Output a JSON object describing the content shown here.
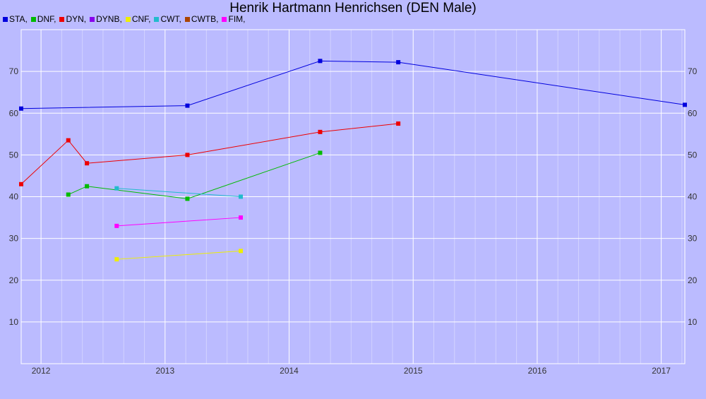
{
  "chart_data": {
    "type": "line",
    "title": "Henrik Hartmann Henrichsen (DEN Male)",
    "xlabel": "",
    "ylabel": "",
    "xlim": [
      2011.84,
      2017.19
    ],
    "ylim": [
      0,
      80
    ],
    "x_ticks": [
      "2012",
      "2013",
      "2014",
      "2015",
      "2016",
      "2017"
    ],
    "y_ticks": [
      "10",
      "20",
      "30",
      "40",
      "50",
      "60",
      "70"
    ],
    "grid": true,
    "legend_position": "top-left",
    "series": [
      {
        "name": "STA",
        "color": "#0000dd",
        "x": [
          2011.84,
          2013.18,
          2014.25,
          2014.88,
          2017.19
        ],
        "y": [
          61.1,
          61.8,
          72.5,
          72.2,
          62.0
        ]
      },
      {
        "name": "DNF",
        "color": "#00bb00",
        "x": [
          2012.22,
          2012.37,
          2013.18,
          2014.25
        ],
        "y": [
          40.5,
          42.5,
          39.5,
          50.5
        ]
      },
      {
        "name": "DYN",
        "color": "#ee0000",
        "x": [
          2011.84,
          2012.22,
          2012.37,
          2013.18,
          2014.25,
          2014.88
        ],
        "y": [
          43.0,
          53.5,
          48.0,
          50.0,
          55.5,
          57.5
        ]
      },
      {
        "name": "DYNB",
        "color": "#8800ee",
        "x": [],
        "y": []
      },
      {
        "name": "CNF",
        "color": "#eeee00",
        "x": [
          2012.61,
          2013.61
        ],
        "y": [
          25.0,
          27.0
        ]
      },
      {
        "name": "CWT",
        "color": "#22bbcc",
        "x": [
          2012.61,
          2013.61
        ],
        "y": [
          42.0,
          40.0
        ]
      },
      {
        "name": "CWTB",
        "color": "#aa4400",
        "x": [],
        "y": []
      },
      {
        "name": "FIM",
        "color": "#ff00ff",
        "x": [
          2012.61,
          2013.61
        ],
        "y": [
          33.0,
          35.0
        ]
      }
    ]
  }
}
